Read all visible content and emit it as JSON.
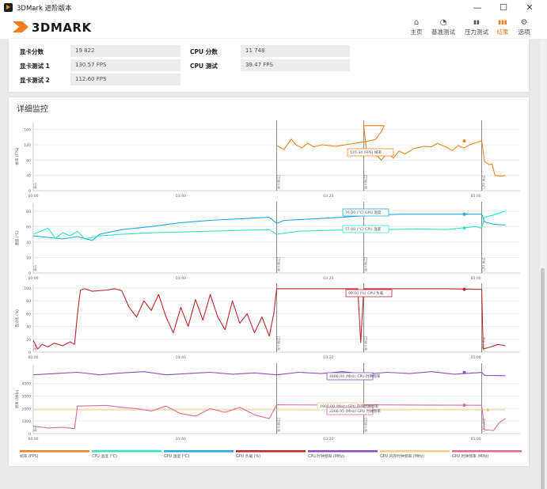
{
  "window": {
    "title": "3DMark 进阶版本",
    "minimize": "—",
    "maximize": "☐",
    "close": "✕"
  },
  "header": {
    "logo_text": "3DMARK",
    "nav": [
      {
        "label": "主页",
        "icon": "home-icon",
        "glyph": "⌂"
      },
      {
        "label": "基准测试",
        "icon": "gauge-icon",
        "glyph": "◔"
      },
      {
        "label": "压力测试",
        "icon": "stress-bars-icon",
        "glyph": "▮▮"
      },
      {
        "label": "结果",
        "icon": "results-bars-icon",
        "glyph": "▮▮▮"
      },
      {
        "label": "选项",
        "icon": "gear-icon",
        "glyph": "⚙"
      }
    ],
    "active": "结果"
  },
  "scores": {
    "gpu_score_label": "显卡分数",
    "gpu_score_value": "19 822",
    "gpu_test1_label": "显卡测试 1",
    "gpu_test1_value": "130.57 FPS",
    "gpu_test2_label": "显卡测试 2",
    "gpu_test2_value": "112.60 FPS",
    "cpu_score_label": "CPU 分数",
    "cpu_score_value": "11 748",
    "cpu_test_label": "CPU 测试",
    "cpu_test_value": "39.47 FPS"
  },
  "monitor": {
    "title": "详细监控",
    "time_ticks": [
      "00:00",
      "01:40",
      "03:20",
      "05:00"
    ],
    "phase_labels": [
      "演示",
      "显卡测试1",
      "显卡测试2",
      "CPU 测试"
    ],
    "colors": {
      "fps": "#f0821e",
      "cpu_temp": "#2ee6c0",
      "gpu_temp": "#22a8e8",
      "gpu_load": "#c0262c",
      "cpu_clock": "#8c4cc8",
      "gpu_mem_clock": "#eccf8c",
      "gpu_clock": "#e06b96"
    },
    "legend": [
      {
        "label": "帧率 (FPS)",
        "color": "#f0821e"
      },
      {
        "label": "CPU 温度 (°C)",
        "color": "#2ee6c0"
      },
      {
        "label": "GPU 温度 (°C)",
        "color": "#22a8e8"
      },
      {
        "label": "GPU 负载 (%)",
        "color": "#c0262c"
      },
      {
        "label": "CPU 时钟频率 (MHz)",
        "color": "#8c4cc8"
      },
      {
        "label": "GPU 内存时钟频率 (MHz)",
        "color": "#eccf8c"
      },
      {
        "label": "GPU 时钟频率 (MHz)",
        "color": "#e06b96"
      }
    ]
  },
  "chart_data": [
    {
      "type": "line",
      "ylabel": "帧率 (FPS)",
      "ylim": [
        0,
        180
      ],
      "yticks": [
        0,
        40,
        80,
        120,
        160
      ],
      "xlim": [
        0,
        330
      ],
      "tooltips": [
        {
          "text": "120.34 (FPS) 帧率",
          "series": "fps"
        }
      ],
      "series": [
        {
          "key": "fps",
          "name": "帧率 (FPS)",
          "points": [
            [
              165,
              118
            ],
            [
              170,
              108
            ],
            [
              175,
              135
            ],
            [
              178,
              120
            ],
            [
              182,
              112
            ],
            [
              186,
              124
            ],
            [
              190,
              115
            ],
            [
              196,
              120
            ],
            [
              205,
              116
            ],
            [
              215,
              122
            ],
            [
              225,
              128
            ],
            [
              232,
              134
            ],
            [
              236,
              155
            ],
            [
              238,
              170
            ],
            [
              224,
              170
            ],
            [
              226,
              100
            ],
            [
              229,
              92
            ],
            [
              232,
              95
            ],
            [
              236,
              80
            ],
            [
              240,
              100
            ],
            [
              244,
              85
            ],
            [
              248,
              104
            ],
            [
              252,
              96
            ],
            [
              258,
              110
            ],
            [
              265,
              116
            ],
            [
              270,
              115
            ],
            [
              274,
              124
            ],
            [
              280,
              114
            ],
            [
              284,
              105
            ],
            [
              288,
              118
            ],
            [
              292,
              112
            ],
            [
              296,
              120
            ],
            [
              302,
              128
            ],
            [
              304,
              130
            ],
            [
              306,
              76
            ],
            [
              309,
              68
            ],
            [
              311,
              70
            ],
            [
              313,
              40
            ],
            [
              318,
              38
            ],
            [
              320,
              40
            ]
          ]
        }
      ]
    },
    {
      "type": "line",
      "ylabel": "温度 (°C)",
      "ylim": [
        0,
        90
      ],
      "yticks": [
        0,
        20,
        40,
        60,
        80
      ],
      "xlim": [
        0,
        330
      ],
      "tooltips": [
        {
          "text": "76.00 (°C) GPU 温度",
          "series": "gpu_temp"
        },
        {
          "text": "57.00 (°C) CPU 温度",
          "series": "cpu_temp"
        }
      ],
      "series": [
        {
          "key": "gpu_temp",
          "name": "GPU 温度 (°C)",
          "points": [
            [
              0,
              48
            ],
            [
              10,
              46
            ],
            [
              20,
              44
            ],
            [
              30,
              47
            ],
            [
              40,
              42
            ],
            [
              45,
              50
            ],
            [
              60,
              56
            ],
            [
              80,
              60
            ],
            [
              100,
              65
            ],
            [
              120,
              68
            ],
            [
              140,
              70
            ],
            [
              160,
              72
            ],
            [
              165,
              64
            ],
            [
              170,
              68
            ],
            [
              190,
              70
            ],
            [
              210,
              72
            ],
            [
              230,
              75
            ],
            [
              250,
              76
            ],
            [
              270,
              76
            ],
            [
              290,
              76
            ],
            [
              304,
              76
            ],
            [
              306,
              66
            ],
            [
              312,
              63
            ],
            [
              320,
              62
            ]
          ]
        },
        {
          "key": "cpu_temp",
          "name": "CPU 温度 (°C)",
          "points": [
            [
              0,
              50
            ],
            [
              10,
              58
            ],
            [
              15,
              45
            ],
            [
              20,
              52
            ],
            [
              25,
              48
            ],
            [
              30,
              54
            ],
            [
              35,
              44
            ],
            [
              40,
              46
            ],
            [
              45,
              48
            ],
            [
              60,
              50
            ],
            [
              80,
              52
            ],
            [
              100,
              53
            ],
            [
              120,
              54
            ],
            [
              140,
              55
            ],
            [
              160,
              56
            ],
            [
              165,
              50
            ],
            [
              180,
              54
            ],
            [
              200,
              55
            ],
            [
              220,
              56
            ],
            [
              240,
              56
            ],
            [
              260,
              57
            ],
            [
              280,
              56
            ],
            [
              300,
              60
            ],
            [
              304,
              58
            ],
            [
              306,
              72
            ],
            [
              312,
              75
            ],
            [
              320,
              80
            ]
          ]
        }
      ]
    },
    {
      "type": "line",
      "ylabel": "百分比 (%)",
      "ylim": [
        0,
        105
      ],
      "yticks": [
        0,
        20,
        40,
        60,
        80,
        100
      ],
      "xlim": [
        0,
        330
      ],
      "tooltips": [
        {
          "text": "99.00 (%) GPU 负载",
          "series": "gpu_load"
        }
      ],
      "series": [
        {
          "key": "gpu_load",
          "name": "GPU 负载 (%)",
          "points": [
            [
              0,
              18
            ],
            [
              3,
              5
            ],
            [
              6,
              12
            ],
            [
              10,
              8
            ],
            [
              14,
              14
            ],
            [
              20,
              10
            ],
            [
              25,
              16
            ],
            [
              28,
              12
            ],
            [
              30,
              60
            ],
            [
              32,
              97
            ],
            [
              35,
              99
            ],
            [
              40,
              95
            ],
            [
              50,
              97
            ],
            [
              55,
              99
            ],
            [
              60,
              96
            ],
            [
              65,
              70
            ],
            [
              70,
              55
            ],
            [
              75,
              80
            ],
            [
              80,
              65
            ],
            [
              85,
              90
            ],
            [
              90,
              55
            ],
            [
              95,
              30
            ],
            [
              100,
              70
            ],
            [
              105,
              40
            ],
            [
              110,
              82
            ],
            [
              115,
              50
            ],
            [
              120,
              90
            ],
            [
              125,
              55
            ],
            [
              130,
              35
            ],
            [
              135,
              80
            ],
            [
              140,
              45
            ],
            [
              145,
              60
            ],
            [
              150,
              30
            ],
            [
              155,
              55
            ],
            [
              160,
              25
            ],
            [
              163,
              60
            ],
            [
              165,
              99
            ],
            [
              175,
              99
            ],
            [
              200,
              99
            ],
            [
              220,
              99
            ],
            [
              222,
              15
            ],
            [
              224,
              99
            ],
            [
              250,
              99
            ],
            [
              280,
              99
            ],
            [
              304,
              98
            ],
            [
              305,
              5
            ],
            [
              310,
              8
            ],
            [
              315,
              12
            ],
            [
              320,
              10
            ]
          ]
        }
      ]
    },
    {
      "type": "line",
      "ylabel": "频率 (MHz)",
      "ylim": [
        0,
        5500
      ],
      "yticks": [
        0,
        1000,
        2000,
        3000,
        4000
      ],
      "xlim": [
        0,
        330
      ],
      "tooltips": [
        {
          "text": "4886.04 (MHz) CPU 时钟频率",
          "series": "cpu_clock"
        },
        {
          "text": "1900.00 (MHz) GPU 内存时钟频率",
          "series": "gpu_mem_clock"
        },
        {
          "text": "2266.95 (MHz) GPU 时钟频率",
          "series": "gpu_clock"
        }
      ],
      "series": [
        {
          "key": "cpu_clock",
          "name": "CPU 时钟频率 (MHz)",
          "points": [
            [
              0,
              4700
            ],
            [
              15,
              4800
            ],
            [
              30,
              4900
            ],
            [
              45,
              4700
            ],
            [
              60,
              4850
            ],
            [
              75,
              4950
            ],
            [
              90,
              4700
            ],
            [
              105,
              4800
            ],
            [
              120,
              4900
            ],
            [
              135,
              4750
            ],
            [
              150,
              4850
            ],
            [
              165,
              4700
            ],
            [
              180,
              4900
            ],
            [
              195,
              4800
            ],
            [
              210,
              4950
            ],
            [
              225,
              4750
            ],
            [
              240,
              4900
            ],
            [
              255,
              4800
            ],
            [
              270,
              4950
            ],
            [
              285,
              4750
            ],
            [
              304,
              4886
            ],
            [
              306,
              4650
            ],
            [
              320,
              4620
            ]
          ]
        },
        {
          "key": "gpu_mem_clock",
          "name": "GPU 内存时钟频率 (MHz)",
          "points": [
            [
              0,
              1900
            ],
            [
              320,
              1900
            ]
          ]
        },
        {
          "key": "gpu_clock",
          "name": "GPU 时钟频率 (MHz)",
          "points": [
            [
              0,
              600
            ],
            [
              10,
              450
            ],
            [
              20,
              500
            ],
            [
              28,
              400
            ],
            [
              30,
              2200
            ],
            [
              50,
              2250
            ],
            [
              60,
              2100
            ],
            [
              70,
              2000
            ],
            [
              80,
              1800
            ],
            [
              90,
              2200
            ],
            [
              100,
              1600
            ],
            [
              110,
              1400
            ],
            [
              120,
              2000
            ],
            [
              130,
              1700
            ],
            [
              140,
              2100
            ],
            [
              150,
              1500
            ],
            [
              160,
              1200
            ],
            [
              165,
              2300
            ],
            [
              200,
              2280
            ],
            [
              222,
              2200
            ],
            [
              224,
              2300
            ],
            [
              260,
              2280
            ],
            [
              304,
              2266
            ],
            [
              306,
              300
            ],
            [
              312,
              250
            ],
            [
              316,
              900
            ],
            [
              320,
              1200
            ]
          ]
        }
      ]
    }
  ]
}
